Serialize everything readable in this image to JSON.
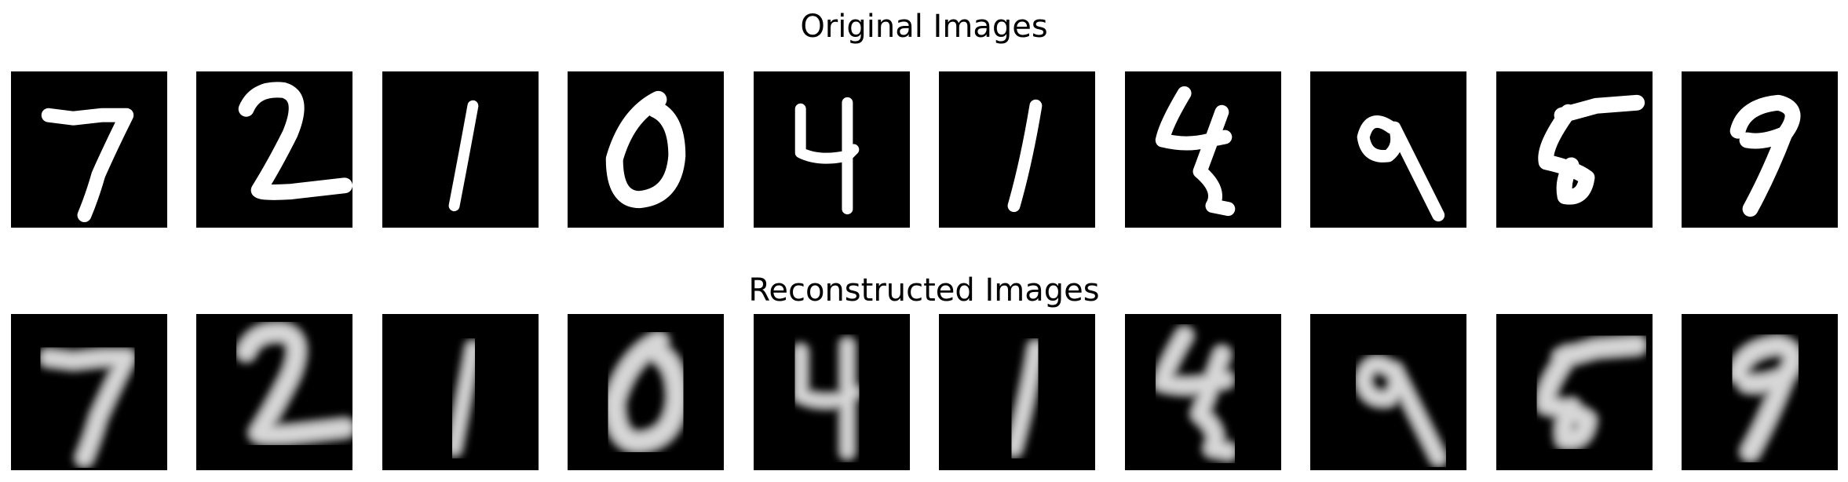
{
  "titles": {
    "original": "Original Images",
    "reconstructed": "Reconstructed Images"
  },
  "digits": [
    "7",
    "2",
    "1",
    "0",
    "4",
    "1",
    "4",
    "9",
    "5",
    "9"
  ],
  "colors": {
    "panel_background": "#000000",
    "original_stroke": "#ffffff",
    "reconstructed_stroke": "#d6d6d6"
  }
}
